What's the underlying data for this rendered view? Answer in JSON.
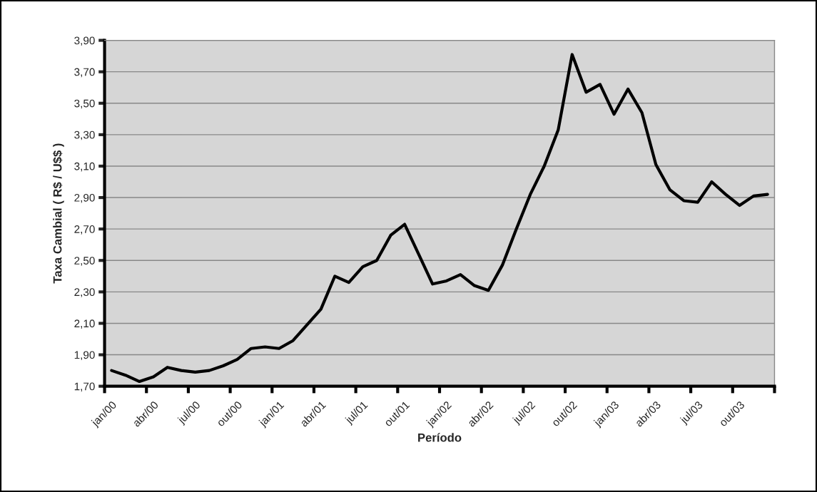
{
  "chart_data": {
    "type": "line",
    "xlabel": "Período",
    "ylabel": "Taxa Cambial ( R$ / U$$ )",
    "categories": [
      "jan/00",
      null,
      null,
      "abr/00",
      null,
      null,
      "jul/00",
      null,
      null,
      "out/00",
      null,
      null,
      "jan/01",
      null,
      null,
      "abr/01",
      null,
      null,
      "jul/01",
      null,
      null,
      "out/01",
      null,
      null,
      "jan/02",
      null,
      null,
      "abr/02",
      null,
      null,
      "jul/02",
      null,
      null,
      "out/02",
      null,
      null,
      "jan/03",
      null,
      null,
      "abr/03",
      null,
      null,
      "jul/03",
      null,
      null,
      "out/03",
      null,
      null
    ],
    "series": [
      {
        "color": "#000000",
        "values": [
          1.8,
          1.77,
          1.73,
          1.76,
          1.82,
          1.8,
          1.79,
          1.8,
          1.83,
          1.87,
          1.94,
          1.95,
          1.94,
          1.99,
          2.09,
          2.19,
          2.4,
          2.36,
          2.46,
          2.5,
          2.66,
          2.73,
          2.54,
          2.35,
          2.37,
          2.41,
          2.34,
          2.31,
          2.47,
          2.7,
          2.92,
          3.1,
          3.33,
          3.81,
          3.57,
          3.62,
          3.43,
          3.59,
          3.44,
          3.11,
          2.95,
          2.88,
          2.87,
          3.0,
          2.92,
          2.85,
          2.91,
          2.92
        ]
      }
    ],
    "ylim": [
      1.7,
      3.9
    ],
    "yticks": [
      {
        "value": 1.7,
        "label": "1,70"
      },
      {
        "value": 1.9,
        "label": "1,90"
      },
      {
        "value": 2.1,
        "label": "2,10"
      },
      {
        "value": 2.3,
        "label": "2,30"
      },
      {
        "value": 2.5,
        "label": "2,50"
      },
      {
        "value": 2.7,
        "label": "2,70"
      },
      {
        "value": 2.9,
        "label": "2,90"
      },
      {
        "value": 3.1,
        "label": "3,10"
      },
      {
        "value": 3.3,
        "label": "3,30"
      },
      {
        "value": 3.5,
        "label": "3,50"
      },
      {
        "value": 3.7,
        "label": "3,70"
      },
      {
        "value": 3.9,
        "label": "3,90"
      }
    ],
    "grid": "y",
    "legend": false,
    "marker": "none",
    "line_style": "solid"
  }
}
